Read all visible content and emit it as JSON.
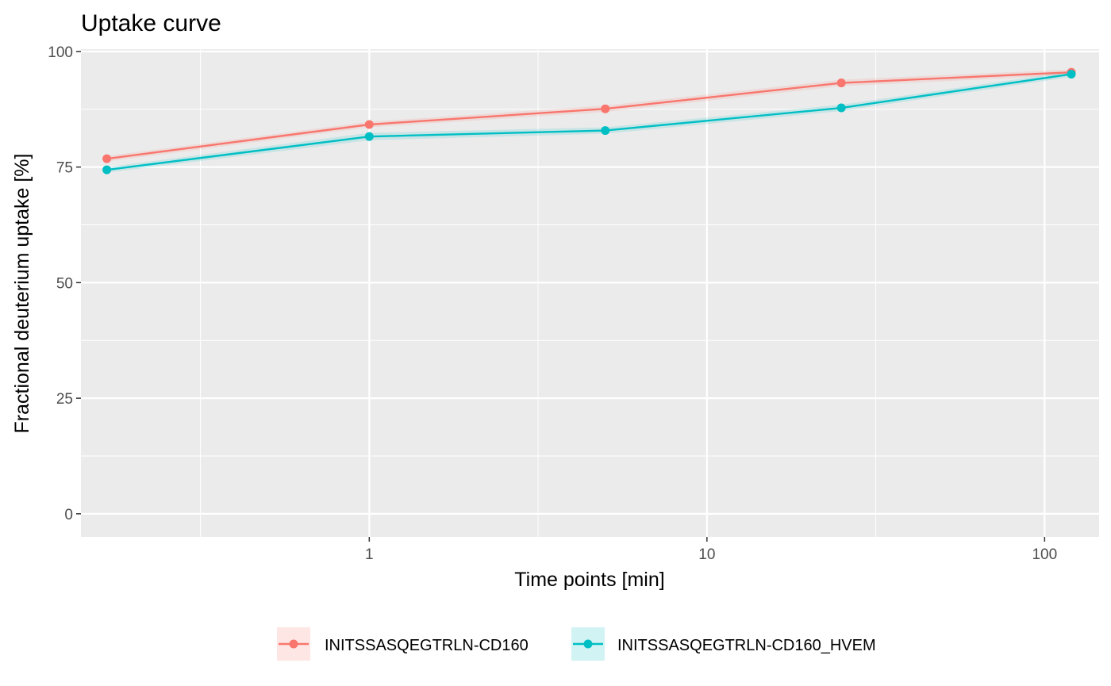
{
  "chart_data": {
    "type": "line",
    "title": "Uptake curve",
    "xlabel": "Time points [min]",
    "ylabel": "Fractional deuterium uptake [%]",
    "x_scale": "log10",
    "xlim": [
      0.14,
      145
    ],
    "ylim": [
      -5,
      100.5
    ],
    "x_ticks": [
      1,
      10,
      100
    ],
    "x_tick_labels": [
      "1",
      "10",
      "100"
    ],
    "y_ticks": [
      0,
      25,
      50,
      75,
      100
    ],
    "y_tick_labels": [
      "0",
      "25",
      "50",
      "75",
      "100"
    ],
    "grid": true,
    "legend_position": "bottom",
    "background": "#ebebeb",
    "x": [
      0.167,
      1,
      5,
      25,
      120
    ],
    "series": [
      {
        "name": "INITSSASQEGTRLN-CD160",
        "color": "#f8766d",
        "values": [
          76.8,
          84.2,
          87.6,
          93.2,
          95.5
        ],
        "error": [
          0.6,
          0.6,
          0.7,
          0.7,
          0.6
        ]
      },
      {
        "name": "INITSSASQEGTRLN-CD160_HVEM",
        "color": "#00bfc4",
        "values": [
          74.4,
          81.6,
          82.9,
          87.8,
          95.1
        ],
        "error": [
          0.6,
          0.8,
          0.7,
          0.7,
          0.6
        ]
      }
    ]
  }
}
